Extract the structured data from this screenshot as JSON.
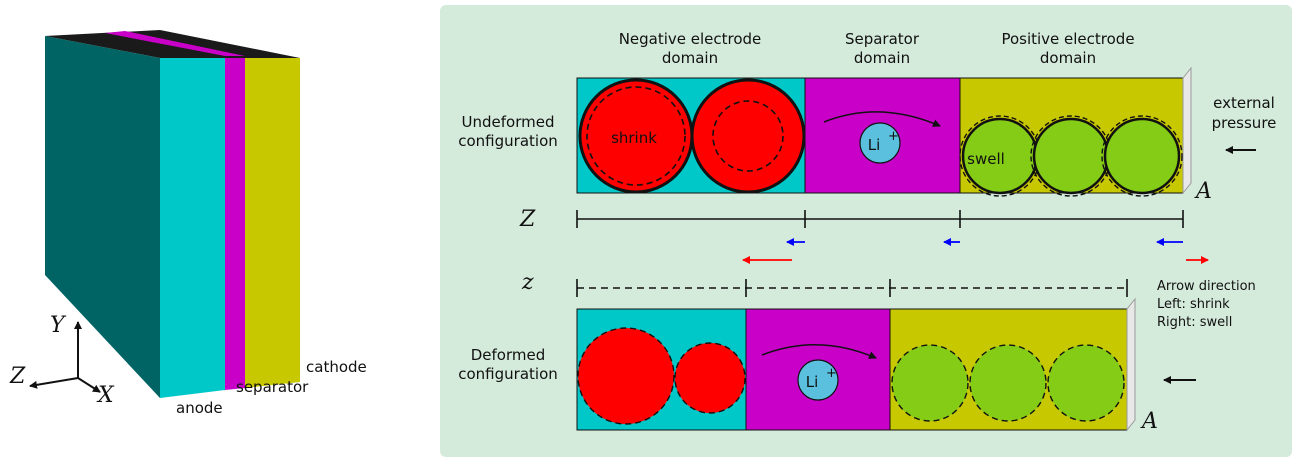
{
  "left_figure": {
    "labels": {
      "anode": "anode",
      "separator": "separator",
      "cathode": "cathode"
    },
    "axes": {
      "y": "Y",
      "z": "Z",
      "x": "X"
    },
    "colors": {
      "anode": "#00c8c8",
      "separator": "#c800c8",
      "cathode": "#c8c800",
      "side": "#006464"
    }
  },
  "right_figure": {
    "headers": {
      "negative": [
        "Negative electrode",
        "domain"
      ],
      "separator": [
        "Separator",
        "domain"
      ],
      "positive": [
        "Positive electrode",
        "domain"
      ]
    },
    "rows": {
      "undeformed": [
        "Undeformed",
        "configuration"
      ],
      "deformed": [
        "Deformed",
        "configuration"
      ]
    },
    "particle_labels": {
      "shrink": "shrink",
      "swell": "swell"
    },
    "ion": {
      "base": "Li",
      "sup": "+"
    },
    "external_pressure": [
      "external",
      "pressure"
    ],
    "axis_labels": {
      "Z": "Z",
      "z": "z",
      "A": "A"
    },
    "legend": [
      "Arrow direction",
      "Left: shrink",
      "Right: swell"
    ],
    "colors": {
      "panel_bg": "#d4eadb",
      "negative": "#00c8c8",
      "separator": "#c800c8",
      "positive": "#c8c800",
      "anode_particle": "#ff0000",
      "cathode_particle": "#84cc16",
      "ion": "#5bc0de",
      "arrow_shrink": "#ff0000",
      "arrow_blue": "#0000ff"
    }
  }
}
